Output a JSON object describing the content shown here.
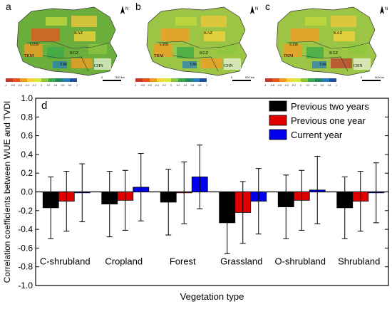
{
  "maps": {
    "panels": [
      {
        "letter": "a"
      },
      {
        "letter": "b"
      },
      {
        "letter": "c"
      }
    ],
    "region_labels": [
      "KAZ",
      "UZB",
      "TKM",
      "KGZ",
      "TJK",
      "CHN"
    ],
    "north_label": "N",
    "scale_labels": [
      "0",
      "500 km"
    ],
    "colorbar_ticks": [
      "-1",
      "-0.8",
      "-0.6",
      "-0.4",
      "-0.2",
      "0",
      "0.2",
      "0.4",
      "0.6",
      "0.8",
      "1"
    ],
    "colorbar_colors": [
      "#c0392b",
      "#e8541c",
      "#f59b23",
      "#f8d33a",
      "#d8e83c",
      "#8cc63f",
      "#3aa84a",
      "#1f8a5b",
      "#2a7fb8",
      "#1f4fa0"
    ]
  },
  "chart_data": {
    "type": "bar",
    "panel_letter": "d",
    "ylabel": "Correlation coefficients between WUE and TVDI",
    "xlabel": "Vegetation type",
    "ylim": [
      -1.0,
      1.0
    ],
    "yticks": [
      "-1.0",
      "-0.8",
      "-0.6",
      "-0.4",
      "-0.2",
      "0.0",
      "0.2",
      "0.4",
      "0.6",
      "0.8",
      "1.0"
    ],
    "categories": [
      "C-shrubland",
      "Cropland",
      "Forest",
      "Grassland",
      "O-shrubland",
      "Shrubland"
    ],
    "series": [
      {
        "name": "Previous two years",
        "color": "#000000",
        "values": [
          -0.17,
          -0.13,
          -0.11,
          -0.33,
          -0.16,
          -0.17
        ],
        "err": [
          0.33,
          0.35,
          0.35,
          0.33,
          0.34,
          0.33
        ]
      },
      {
        "name": "Previous one year",
        "color": "#e00000",
        "values": [
          -0.1,
          -0.09,
          -0.01,
          -0.22,
          -0.09,
          -0.1
        ],
        "err": [
          0.32,
          0.32,
          0.33,
          0.33,
          0.32,
          0.32
        ]
      },
      {
        "name": "Current year",
        "color": "#0000ee",
        "values": [
          -0.01,
          0.05,
          0.16,
          -0.1,
          0.02,
          -0.01
        ],
        "err": [
          0.31,
          0.36,
          0.34,
          0.35,
          0.36,
          0.32
        ]
      }
    ],
    "legend_position": "top-right"
  }
}
